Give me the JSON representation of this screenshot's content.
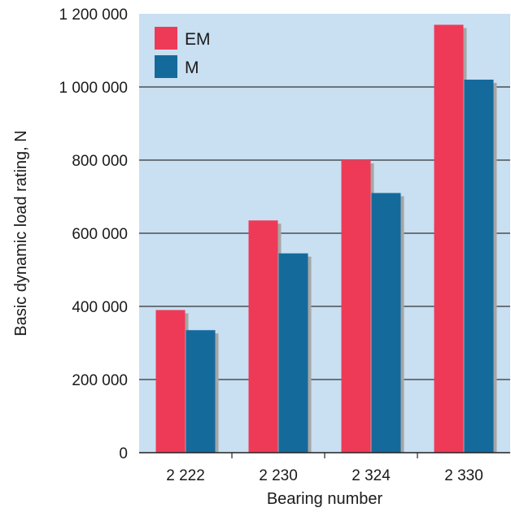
{
  "chart_data": {
    "type": "bar",
    "title": "",
    "xlabel": "Bearing number",
    "ylabel": "Basic dynamic load rating, N",
    "categories": [
      "2 222",
      "2 230",
      "2 324",
      "2 330"
    ],
    "series": [
      {
        "name": "EM",
        "values": [
          390000,
          635000,
          800000,
          1170000
        ]
      },
      {
        "name": "M",
        "values": [
          335000,
          545000,
          710000,
          1020000
        ]
      }
    ],
    "ylim": [
      0,
      1200000
    ],
    "yticks": [
      0,
      200000,
      400000,
      600000,
      800000,
      1000000,
      1200000
    ],
    "ytick_labels": [
      "0",
      "200 000",
      "400 000",
      "600 000",
      "800 000",
      "1 000 000",
      "1 200 000"
    ],
    "grid": true,
    "legend_position": "top-left",
    "colors": {
      "EM": "#ee3a57",
      "M": "#156a9c",
      "plot_background": "#c9dff2",
      "gridline": "#333333",
      "bar_shadow": "#a6a6a6"
    }
  }
}
